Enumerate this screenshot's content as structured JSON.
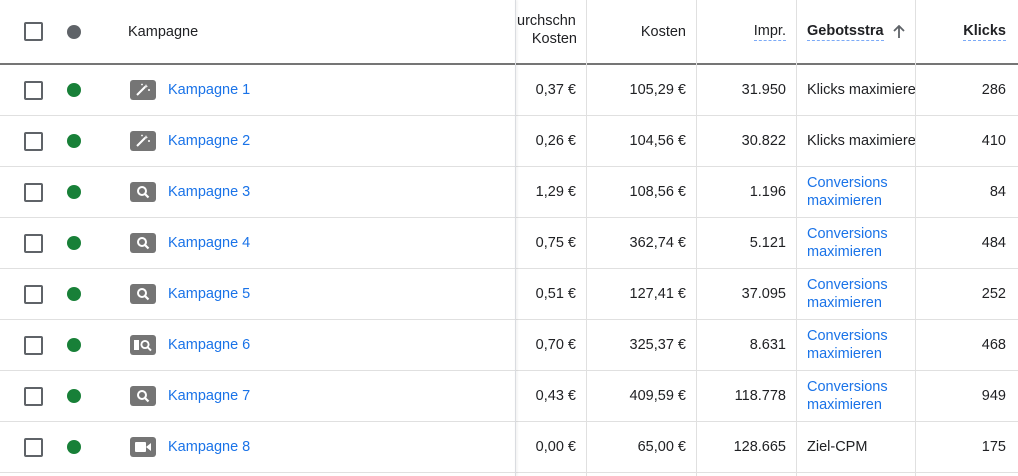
{
  "header": {
    "campaign": "Kampagne",
    "cpc_line1": "urchschn.",
    "cpc_line2": "Kosten",
    "cost": "Kosten",
    "impressions": "Impr.",
    "bid_strategy": "Gebotsstra",
    "clicks": "Klicks"
  },
  "icons": {
    "smart": "magic-wand-icon",
    "search": "search-icon",
    "display": "image-search-icon",
    "video": "video-camera-icon"
  },
  "colors": {
    "status_enabled": "#188038",
    "link": "#1a73e8",
    "icon_gray": "#757575"
  },
  "rows": [
    {
      "name": "Kampagne 1",
      "icon": "magic-wand-icon",
      "cpc": "0,37 €",
      "cost": "105,29 €",
      "impr": "31.950",
      "bid": "Klicks maximieren",
      "bid_link": false,
      "clicks": "286"
    },
    {
      "name": "Kampagne 2",
      "icon": "magic-wand-icon",
      "cpc": "0,26 €",
      "cost": "104,56 €",
      "impr": "30.822",
      "bid": "Klicks maximieren",
      "bid_link": false,
      "clicks": "410"
    },
    {
      "name": "Kampagne 3",
      "icon": "search-icon",
      "cpc": "1,29 €",
      "cost": "108,56 €",
      "impr": "1.196",
      "bid": "Conversions maximieren",
      "bid_link": true,
      "clicks": "84"
    },
    {
      "name": "Kampagne 4",
      "icon": "search-icon",
      "cpc": "0,75 €",
      "cost": "362,74 €",
      "impr": "5.121",
      "bid": "Conversions maximieren",
      "bid_link": true,
      "clicks": "484"
    },
    {
      "name": "Kampagne 5",
      "icon": "search-icon",
      "cpc": "0,51 €",
      "cost": "127,41 €",
      "impr": "37.095",
      "bid": "Conversions maximieren",
      "bid_link": true,
      "clicks": "252"
    },
    {
      "name": "Kampagne 6",
      "icon": "image-search-icon",
      "cpc": "0,70 €",
      "cost": "325,37 €",
      "impr": "8.631",
      "bid": "Conversions maximieren",
      "bid_link": true,
      "clicks": "468"
    },
    {
      "name": "Kampagne 7",
      "icon": "search-icon",
      "cpc": "0,43 €",
      "cost": "409,59 €",
      "impr": "118.778",
      "bid": "Conversions maximieren",
      "bid_link": true,
      "clicks": "949"
    },
    {
      "name": "Kampagne 8",
      "icon": "video-camera-icon",
      "cpc": "0,00 €",
      "cost": "65,00 €",
      "impr": "128.665",
      "bid": "Ziel-CPM",
      "bid_link": false,
      "clicks": "175"
    }
  ]
}
